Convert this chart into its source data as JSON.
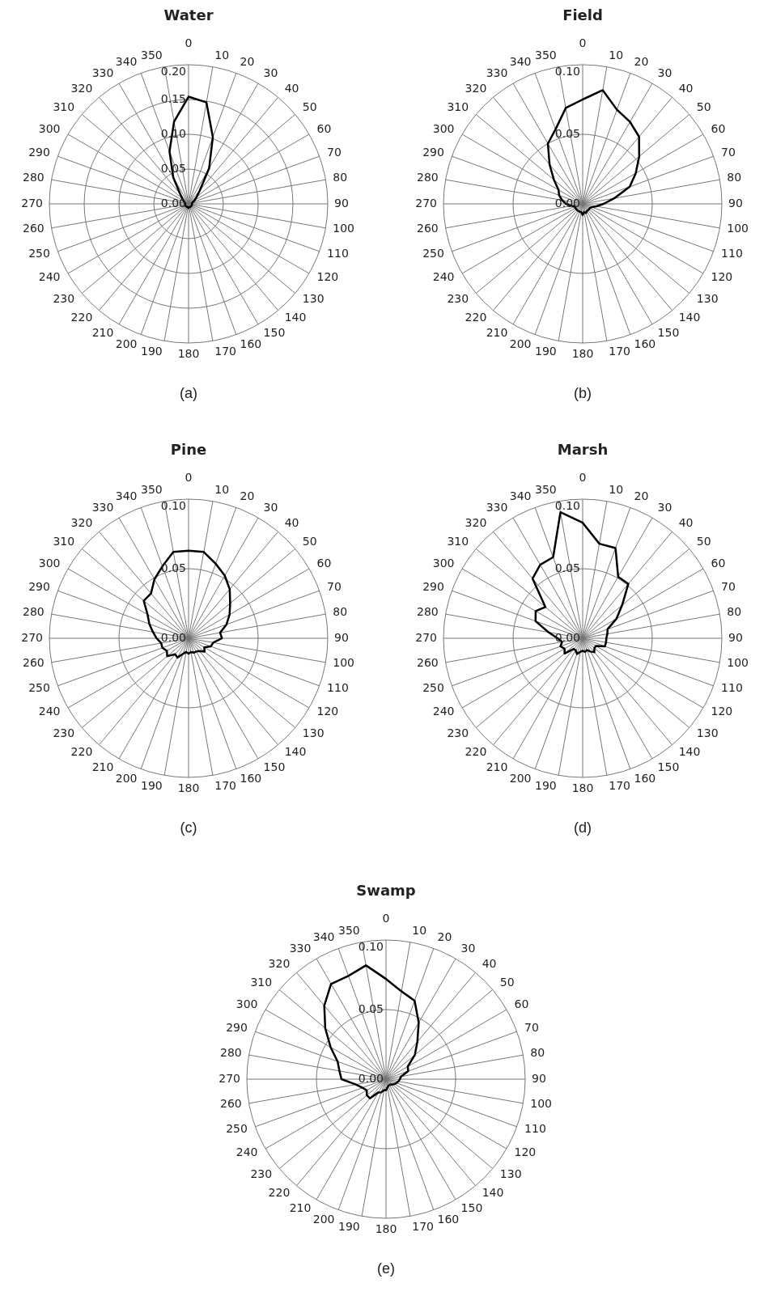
{
  "chart_data": [
    {
      "type": "radar",
      "title": "Water",
      "categories": [
        "0",
        "10",
        "20",
        "30",
        "40",
        "50",
        "60",
        "70",
        "80",
        "90",
        "100",
        "110",
        "120",
        "130",
        "140",
        "150",
        "160",
        "170",
        "180",
        "190",
        "200",
        "210",
        "220",
        "230",
        "240",
        "250",
        "260",
        "270",
        "280",
        "290",
        "300",
        "310",
        "320",
        "330",
        "340",
        "350"
      ],
      "series": [
        {
          "color": "#000000",
          "values": [
            0.154,
            0.148,
            0.102,
            0.059,
            0.025,
            0.015,
            0.01,
            0.006,
            0.005,
            0.005,
            0.005,
            0.005,
            0.005,
            0.005,
            0.005,
            0.005,
            0.005,
            0.005,
            0.006,
            0.005,
            0.005,
            0.005,
            0.005,
            0.005,
            0.005,
            0.005,
            0.005,
            0.005,
            0.005,
            0.006,
            0.008,
            0.012,
            0.019,
            0.044,
            0.08,
            0.12
          ]
        }
      ],
      "ylim": [
        0,
        0.2
      ],
      "yticks": [
        {
          "value": 0,
          "label": "0.00"
        },
        {
          "value": 0.05,
          "label": "0.05"
        },
        {
          "value": 0.1,
          "label": "0.10"
        },
        {
          "value": 0.15,
          "label": "0.15"
        },
        {
          "value": 0.2,
          "label": "0.20"
        }
      ],
      "grid": true,
      "marker": "none",
      "annotations": [
        "(a)"
      ]
    },
    {
      "type": "radar",
      "title": "Field",
      "categories": [
        "0",
        "10",
        "20",
        "30",
        "40",
        "50",
        "60",
        "70",
        "80",
        "90",
        "100",
        "110",
        "120",
        "130",
        "140",
        "150",
        "160",
        "170",
        "180",
        "190",
        "200",
        "210",
        "220",
        "230",
        "240",
        "250",
        "260",
        "270",
        "280",
        "290",
        "300",
        "310",
        "320",
        "330",
        "340",
        "350"
      ],
      "series": [
        {
          "color": "#000000",
          "values": [
            0.075,
            0.083,
            0.072,
            0.068,
            0.063,
            0.053,
            0.044,
            0.036,
            0.023,
            0.015,
            0.01,
            0.007,
            0.006,
            0.006,
            0.006,
            0.006,
            0.007,
            0.006,
            0.008,
            0.006,
            0.006,
            0.006,
            0.006,
            0.006,
            0.006,
            0.006,
            0.008,
            0.012,
            0.015,
            0.018,
            0.02,
            0.027,
            0.037,
            0.05,
            0.057,
            0.07
          ]
        }
      ],
      "ylim": [
        0,
        0.1
      ],
      "yticks": [
        {
          "value": 0,
          "label": "0.00"
        },
        {
          "value": 0.05,
          "label": "0.05"
        },
        {
          "value": 0.1,
          "label": "0.10"
        }
      ],
      "grid": true,
      "marker": "none",
      "annotations": [
        "(b)"
      ]
    },
    {
      "type": "radar",
      "title": "Pine",
      "categories": [
        "0",
        "10",
        "20",
        "30",
        "40",
        "50",
        "60",
        "70",
        "80",
        "90",
        "100",
        "110",
        "120",
        "130",
        "140",
        "150",
        "160",
        "170",
        "180",
        "190",
        "200",
        "210",
        "220",
        "230",
        "240",
        "250",
        "260",
        "270",
        "280",
        "290",
        "300",
        "310",
        "320",
        "330",
        "340",
        "350"
      ],
      "series": [
        {
          "color": "#000000",
          "values": [
            0.063,
            0.063,
            0.057,
            0.052,
            0.046,
            0.039,
            0.034,
            0.029,
            0.023,
            0.024,
            0.018,
            0.017,
            0.013,
            0.015,
            0.012,
            0.011,
            0.011,
            0.01,
            0.011,
            0.01,
            0.012,
            0.016,
            0.015,
            0.02,
            0.018,
            0.02,
            0.02,
            0.023,
            0.026,
            0.03,
            0.034,
            0.042,
            0.042,
            0.049,
            0.055,
            0.063
          ]
        }
      ],
      "ylim": [
        0,
        0.1
      ],
      "yticks": [
        {
          "value": 0,
          "label": "0.00"
        },
        {
          "value": 0.05,
          "label": "0.05"
        },
        {
          "value": 0.1,
          "label": "0.10"
        }
      ],
      "grid": true,
      "marker": "none",
      "annotations": [
        "(c)"
      ]
    },
    {
      "type": "radar",
      "title": "Marsh",
      "categories": [
        "0",
        "10",
        "20",
        "30",
        "40",
        "50",
        "60",
        "70",
        "80",
        "90",
        "100",
        "110",
        "120",
        "130",
        "140",
        "150",
        "160",
        "170",
        "180",
        "190",
        "200",
        "210",
        "220",
        "230",
        "240",
        "250",
        "260",
        "270",
        "280",
        "290",
        "300",
        "310",
        "320",
        "330",
        "340",
        "350"
      ],
      "series": [
        {
          "color": "#000000",
          "values": [
            0.083,
            0.069,
            0.069,
            0.051,
            0.051,
            0.037,
            0.028,
            0.019,
            0.018,
            0.017,
            0.017,
            0.017,
            0.011,
            0.011,
            0.013,
            0.011,
            0.009,
            0.01,
            0.009,
            0.01,
            0.012,
            0.01,
            0.01,
            0.017,
            0.015,
            0.017,
            0.015,
            0.018,
            0.025,
            0.036,
            0.039,
            0.035,
            0.056,
            0.061,
            0.062,
            0.092
          ]
        }
      ],
      "ylim": [
        0,
        0.1
      ],
      "yticks": [
        {
          "value": 0,
          "label": "0.00"
        },
        {
          "value": 0.05,
          "label": "0.05"
        },
        {
          "value": 0.1,
          "label": "0.10"
        }
      ],
      "grid": true,
      "marker": "none",
      "annotations": [
        "(d)"
      ]
    },
    {
      "type": "radar",
      "title": "Swamp",
      "categories": [
        "0",
        "10",
        "20",
        "30",
        "40",
        "50",
        "60",
        "70",
        "80",
        "90",
        "100",
        "110",
        "120",
        "130",
        "140",
        "150",
        "160",
        "170",
        "180",
        "190",
        "200",
        "210",
        "220",
        "230",
        "240",
        "250",
        "260",
        "270",
        "280",
        "290",
        "300",
        "310",
        "320",
        "330",
        "340",
        "350"
      ],
      "series": [
        {
          "color": "#000000",
          "values": [
            0.072,
            0.064,
            0.06,
            0.047,
            0.035,
            0.027,
            0.018,
            0.017,
            0.011,
            0.01,
            0.009,
            0.008,
            0.007,
            0.006,
            0.005,
            0.005,
            0.005,
            0.006,
            0.008,
            0.008,
            0.01,
            0.011,
            0.018,
            0.018,
            0.016,
            0.018,
            0.022,
            0.032,
            0.034,
            0.037,
            0.046,
            0.057,
            0.069,
            0.079,
            0.079,
            0.083
          ]
        }
      ],
      "ylim": [
        0,
        0.1
      ],
      "yticks": [
        {
          "value": 0,
          "label": "0.00"
        },
        {
          "value": 0.05,
          "label": "0.05"
        },
        {
          "value": 0.1,
          "label": "0.10"
        }
      ],
      "grid": true,
      "marker": "none",
      "annotations": [
        "(e)"
      ]
    }
  ]
}
